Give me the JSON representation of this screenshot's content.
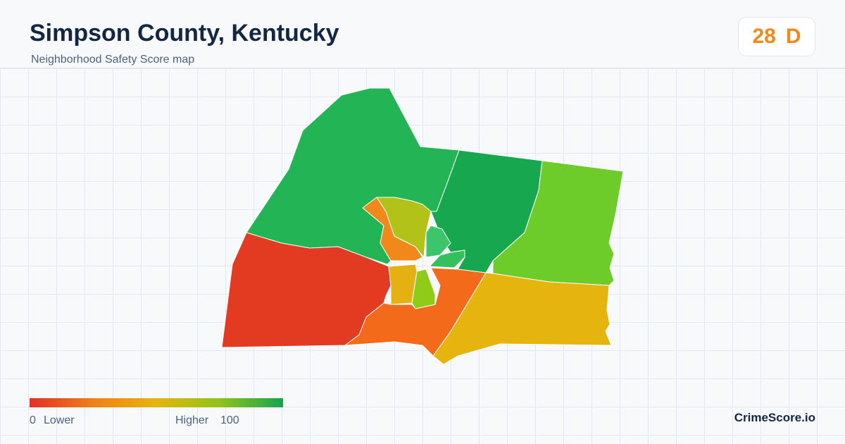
{
  "header": {
    "title": "Simpson County, Kentucky",
    "subtitle": "Neighborhood Safety Score map"
  },
  "score": {
    "value": 28,
    "grade": "D"
  },
  "legend": {
    "min": 0,
    "min_label": "Lower",
    "max_label": "Higher",
    "max": 100
  },
  "brand": "CrimeScore.io"
}
